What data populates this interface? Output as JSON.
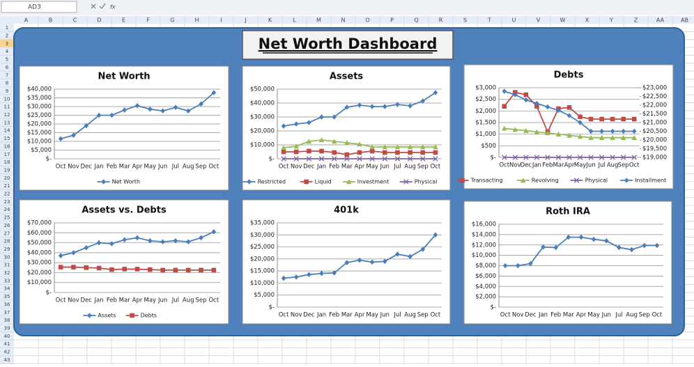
{
  "spreadsheet": {
    "name_box": "AD3",
    "fx_label": "fx",
    "columns": [
      "A",
      "B",
      "C",
      "D",
      "E",
      "F",
      "G",
      "H",
      "I",
      "J",
      "K",
      "L",
      "M",
      "N",
      "O",
      "P",
      "Q",
      "R",
      "S",
      "T",
      "U",
      "V",
      "W",
      "X",
      "Y",
      "Z",
      "AA",
      "AB"
    ],
    "rows": [
      1,
      2,
      3,
      4,
      5,
      6,
      7,
      8,
      9,
      10,
      11,
      12,
      13,
      14,
      15,
      16,
      17,
      18,
      19,
      20,
      21,
      22,
      23,
      24,
      25,
      26,
      27,
      28,
      29,
      30,
      31,
      32,
      33,
      34,
      35,
      36,
      37,
      38,
      39,
      40,
      41,
      42,
      43
    ]
  },
  "dashboard_title": "Net Worth Dashboard",
  "chart_data": [
    {
      "type": "line",
      "title": "Net Worth",
      "categories": [
        "Oct",
        "Nov",
        "Dec",
        "Jan",
        "Feb",
        "Mar",
        "Apr",
        "May",
        "Jun",
        "Jul",
        "Aug",
        "Sep",
        "Oct"
      ],
      "series": [
        {
          "name": "Net Worth",
          "color": "#4a7ebb",
          "marker": "diamond",
          "values": [
            11500,
            13500,
            19000,
            25000,
            25000,
            28000,
            30500,
            28500,
            27500,
            29500,
            27500,
            31500,
            38000
          ]
        }
      ],
      "ylim": [
        0,
        40000
      ],
      "yticks": [
        {
          "value": 0,
          "label": "$-"
        },
        {
          "value": 5000,
          "label": "$5,000"
        },
        {
          "value": 10000,
          "label": "$10,000"
        },
        {
          "value": 15000,
          "label": "$15,000"
        },
        {
          "value": 20000,
          "label": "$20,000"
        },
        {
          "value": 25000,
          "label": "$25,000"
        },
        {
          "value": 30000,
          "label": "$30,000"
        },
        {
          "value": 35000,
          "label": "$35,000"
        },
        {
          "value": 40000,
          "label": "$40,000"
        }
      ],
      "grid": true
    },
    {
      "type": "line",
      "title": "Assets",
      "categories": [
        "Oct",
        "Nov",
        "Dec",
        "Jan",
        "Feb",
        "Mar",
        "Apr",
        "May",
        "Jun",
        "Jul",
        "Aug",
        "Sep",
        "Oct"
      ],
      "series": [
        {
          "name": "Restricted",
          "color": "#4a7ebb",
          "marker": "diamond",
          "values": [
            23500,
            25000,
            26000,
            30000,
            30000,
            37000,
            38500,
            37500,
            37500,
            39000,
            38000,
            41500,
            47500
          ]
        },
        {
          "name": "Liquid",
          "color": "#be4b48",
          "marker": "square",
          "values": [
            5000,
            5000,
            5500,
            5500,
            4500,
            3000,
            4500,
            5500,
            4500,
            4500,
            4500,
            4500,
            4500
          ]
        },
        {
          "name": "Investment",
          "color": "#98b954",
          "marker": "triangle",
          "values": [
            8000,
            9000,
            12500,
            13500,
            12500,
            11500,
            10500,
            8500,
            8500,
            8500,
            8500,
            8500,
            8500
          ]
        },
        {
          "name": "Physical",
          "color": "#7d60a0",
          "marker": "x",
          "values": [
            0,
            0,
            0,
            0,
            0,
            0,
            0,
            0,
            0,
            0,
            0,
            0,
            0
          ]
        }
      ],
      "ylim": [
        0,
        50000
      ],
      "yticks": [
        {
          "value": 0,
          "label": "$-"
        },
        {
          "value": 10000,
          "label": "$10,000"
        },
        {
          "value": 20000,
          "label": "$20,000"
        },
        {
          "value": 30000,
          "label": "$30,000"
        },
        {
          "value": 40000,
          "label": "$40,000"
        },
        {
          "value": 50000,
          "label": "$50,000"
        }
      ],
      "grid": true
    },
    {
      "type": "line",
      "title": "Debts",
      "categories": [
        "Oct",
        "Nov",
        "Dec",
        "Jan",
        "Feb",
        "Mar",
        "Apr",
        "May",
        "Jun",
        "Jul",
        "Aug",
        "Sep",
        "Oct"
      ],
      "series": [
        {
          "name": "Transacting",
          "color": "#be4b48",
          "marker": "square",
          "values": [
            2200,
            2800,
            2700,
            2200,
            1100,
            2100,
            2150,
            1750,
            1650,
            1650,
            1650,
            1650,
            1650
          ]
        },
        {
          "name": "Revolving",
          "color": "#98b954",
          "marker": "triangle",
          "values": [
            1250,
            1200,
            1150,
            1100,
            1050,
            1000,
            950,
            900,
            850,
            850,
            850,
            850,
            850
          ]
        },
        {
          "name": "Physical",
          "color": "#7d60a0",
          "marker": "x",
          "values": [
            0,
            0,
            0,
            0,
            0,
            0,
            0,
            0,
            0,
            0,
            0,
            0,
            0
          ]
        },
        {
          "name": "Installment",
          "color": "#4a7ebb",
          "marker": "diamond",
          "axis": "y2",
          "values": [
            22800,
            22600,
            22300,
            22100,
            21900,
            21700,
            21400,
            21000,
            20500,
            20500,
            20500,
            20500,
            20500
          ]
        }
      ],
      "ylim": [
        0,
        3000
      ],
      "yticks": [
        {
          "value": 0,
          "label": "$-"
        },
        {
          "value": 500,
          "label": "$500"
        },
        {
          "value": 1000,
          "label": "$1,000"
        },
        {
          "value": 1500,
          "label": "$1,500"
        },
        {
          "value": 2000,
          "label": "$2,000"
        },
        {
          "value": 2500,
          "label": "$2,500"
        },
        {
          "value": 3000,
          "label": "$3,000"
        }
      ],
      "y2lim": [
        19000,
        23000
      ],
      "y2ticks": [
        {
          "value": 19000,
          "label": "$19,000"
        },
        {
          "value": 19500,
          "label": "$19,500"
        },
        {
          "value": 20000,
          "label": "$20,000"
        },
        {
          "value": 20500,
          "label": "$20,500"
        },
        {
          "value": 21000,
          "label": "$21,000"
        },
        {
          "value": 21500,
          "label": "$21,500"
        },
        {
          "value": 22000,
          "label": "$22,000"
        },
        {
          "value": 22500,
          "label": "$22,500"
        },
        {
          "value": 23000,
          "label": "$23,000"
        }
      ],
      "grid": true
    },
    {
      "type": "line",
      "title": "Assets vs. Debts",
      "categories": [
        "Oct",
        "Nov",
        "Dec",
        "Jan",
        "Feb",
        "Mar",
        "Apr",
        "May",
        "Jun",
        "Jul",
        "Aug",
        "Sep",
        "Oct"
      ],
      "series": [
        {
          "name": "Assets",
          "color": "#4a7ebb",
          "marker": "diamond",
          "values": [
            37000,
            40000,
            45000,
            50000,
            49000,
            53000,
            55000,
            52000,
            51000,
            52000,
            51000,
            55000,
            61000
          ]
        },
        {
          "name": "Debts",
          "color": "#be4b48",
          "marker": "square",
          "values": [
            25500,
            25500,
            25000,
            24500,
            23000,
            23500,
            23500,
            23000,
            22500,
            22500,
            22500,
            22500,
            22500
          ]
        }
      ],
      "ylim": [
        0,
        70000
      ],
      "yticks": [
        {
          "value": 0,
          "label": "$-"
        },
        {
          "value": 10000,
          "label": "$10,000"
        },
        {
          "value": 20000,
          "label": "$20,000"
        },
        {
          "value": 30000,
          "label": "$30,000"
        },
        {
          "value": 40000,
          "label": "$40,000"
        },
        {
          "value": 50000,
          "label": "$50,000"
        },
        {
          "value": 60000,
          "label": "$60,000"
        },
        {
          "value": 70000,
          "label": "$70,000"
        }
      ],
      "grid": true
    },
    {
      "type": "line",
      "title": "401k",
      "categories": [
        "Oct",
        "Nov",
        "Dec",
        "Jan",
        "Feb",
        "Mar",
        "Apr",
        "May",
        "Jun",
        "Jul",
        "Aug",
        "Sep",
        "Oct"
      ],
      "values": [
        12000,
        12500,
        13500,
        14000,
        14200,
        18500,
        19500,
        18700,
        19000,
        22000,
        21000,
        24000,
        30000
      ],
      "color": "#4a7ebb",
      "marker": "diamond",
      "ylim": [
        0,
        35000
      ],
      "yticks": [
        {
          "value": 0,
          "label": "$-"
        },
        {
          "value": 5000,
          "label": "$5,000"
        },
        {
          "value": 10000,
          "label": "$10,000"
        },
        {
          "value": 15000,
          "label": "$15,000"
        },
        {
          "value": 20000,
          "label": "$20,000"
        },
        {
          "value": 25000,
          "label": "$25,000"
        },
        {
          "value": 30000,
          "label": "$30,000"
        },
        {
          "value": 35000,
          "label": "$35,000"
        }
      ],
      "grid": true
    },
    {
      "type": "line",
      "title": "Roth IRA",
      "categories": [
        "Oct",
        "Nov",
        "Dec",
        "Jan",
        "Feb",
        "Mar",
        "Apr",
        "May",
        "Jun",
        "Jul",
        "Aug",
        "Sep",
        "Oct"
      ],
      "values": [
        8000,
        8000,
        8400,
        11600,
        11500,
        13500,
        13500,
        13100,
        12800,
        11500,
        11100,
        11900,
        11900
      ],
      "color": "#4a7ebb",
      "marker": "diamond",
      "ylim": [
        0,
        16000
      ],
      "yticks": [
        {
          "value": 0,
          "label": "$-"
        },
        {
          "value": 2000,
          "label": "$2,000"
        },
        {
          "value": 4000,
          "label": "$4,000"
        },
        {
          "value": 6000,
          "label": "$6,000"
        },
        {
          "value": 8000,
          "label": "$8,000"
        },
        {
          "value": 10000,
          "label": "$10,000"
        },
        {
          "value": 12000,
          "label": "$12,000"
        },
        {
          "value": 14000,
          "label": "$14,000"
        },
        {
          "value": 16000,
          "label": "$16,000"
        }
      ],
      "grid": true
    }
  ]
}
